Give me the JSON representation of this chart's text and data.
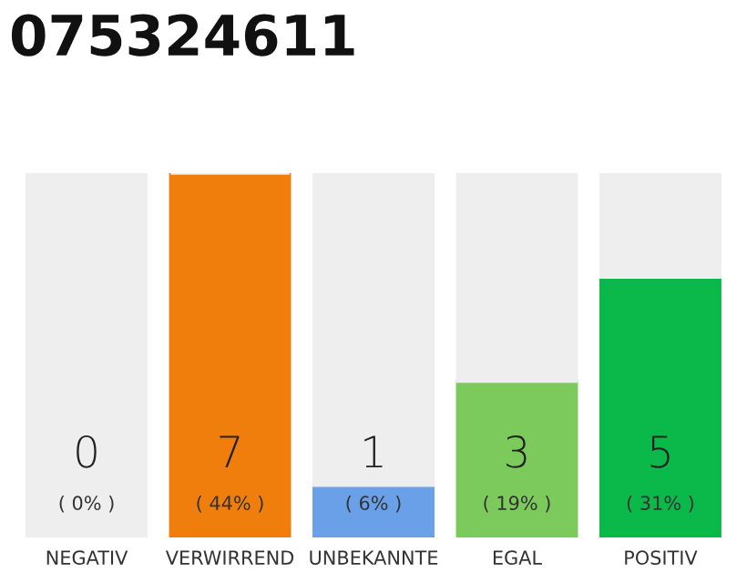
{
  "chart_data": {
    "type": "bar",
    "title": "075324611",
    "stacked": true,
    "categories": [
      "NEGATIV",
      "VERWIRREND",
      "UNBEKANNTE",
      "EGAL",
      "POSITIV"
    ],
    "series": [
      {
        "colors": [
          "#555555",
          "#f07e0d",
          "#6aa0e8",
          "#7dca5c",
          "#0bb84a"
        ],
        "values": [
          0,
          7,
          1,
          3,
          5
        ],
        "value_labels": [
          "0\n( 0% )",
          "7\n( 44% )",
          "1\n( 6% )",
          "3\n( 19% )",
          "5\n( 31% )"
        ]
      },
      {
        "color": "#eeeeee",
        "values": [
          7,
          0,
          6,
          4,
          2
        ]
      }
    ]
  }
}
